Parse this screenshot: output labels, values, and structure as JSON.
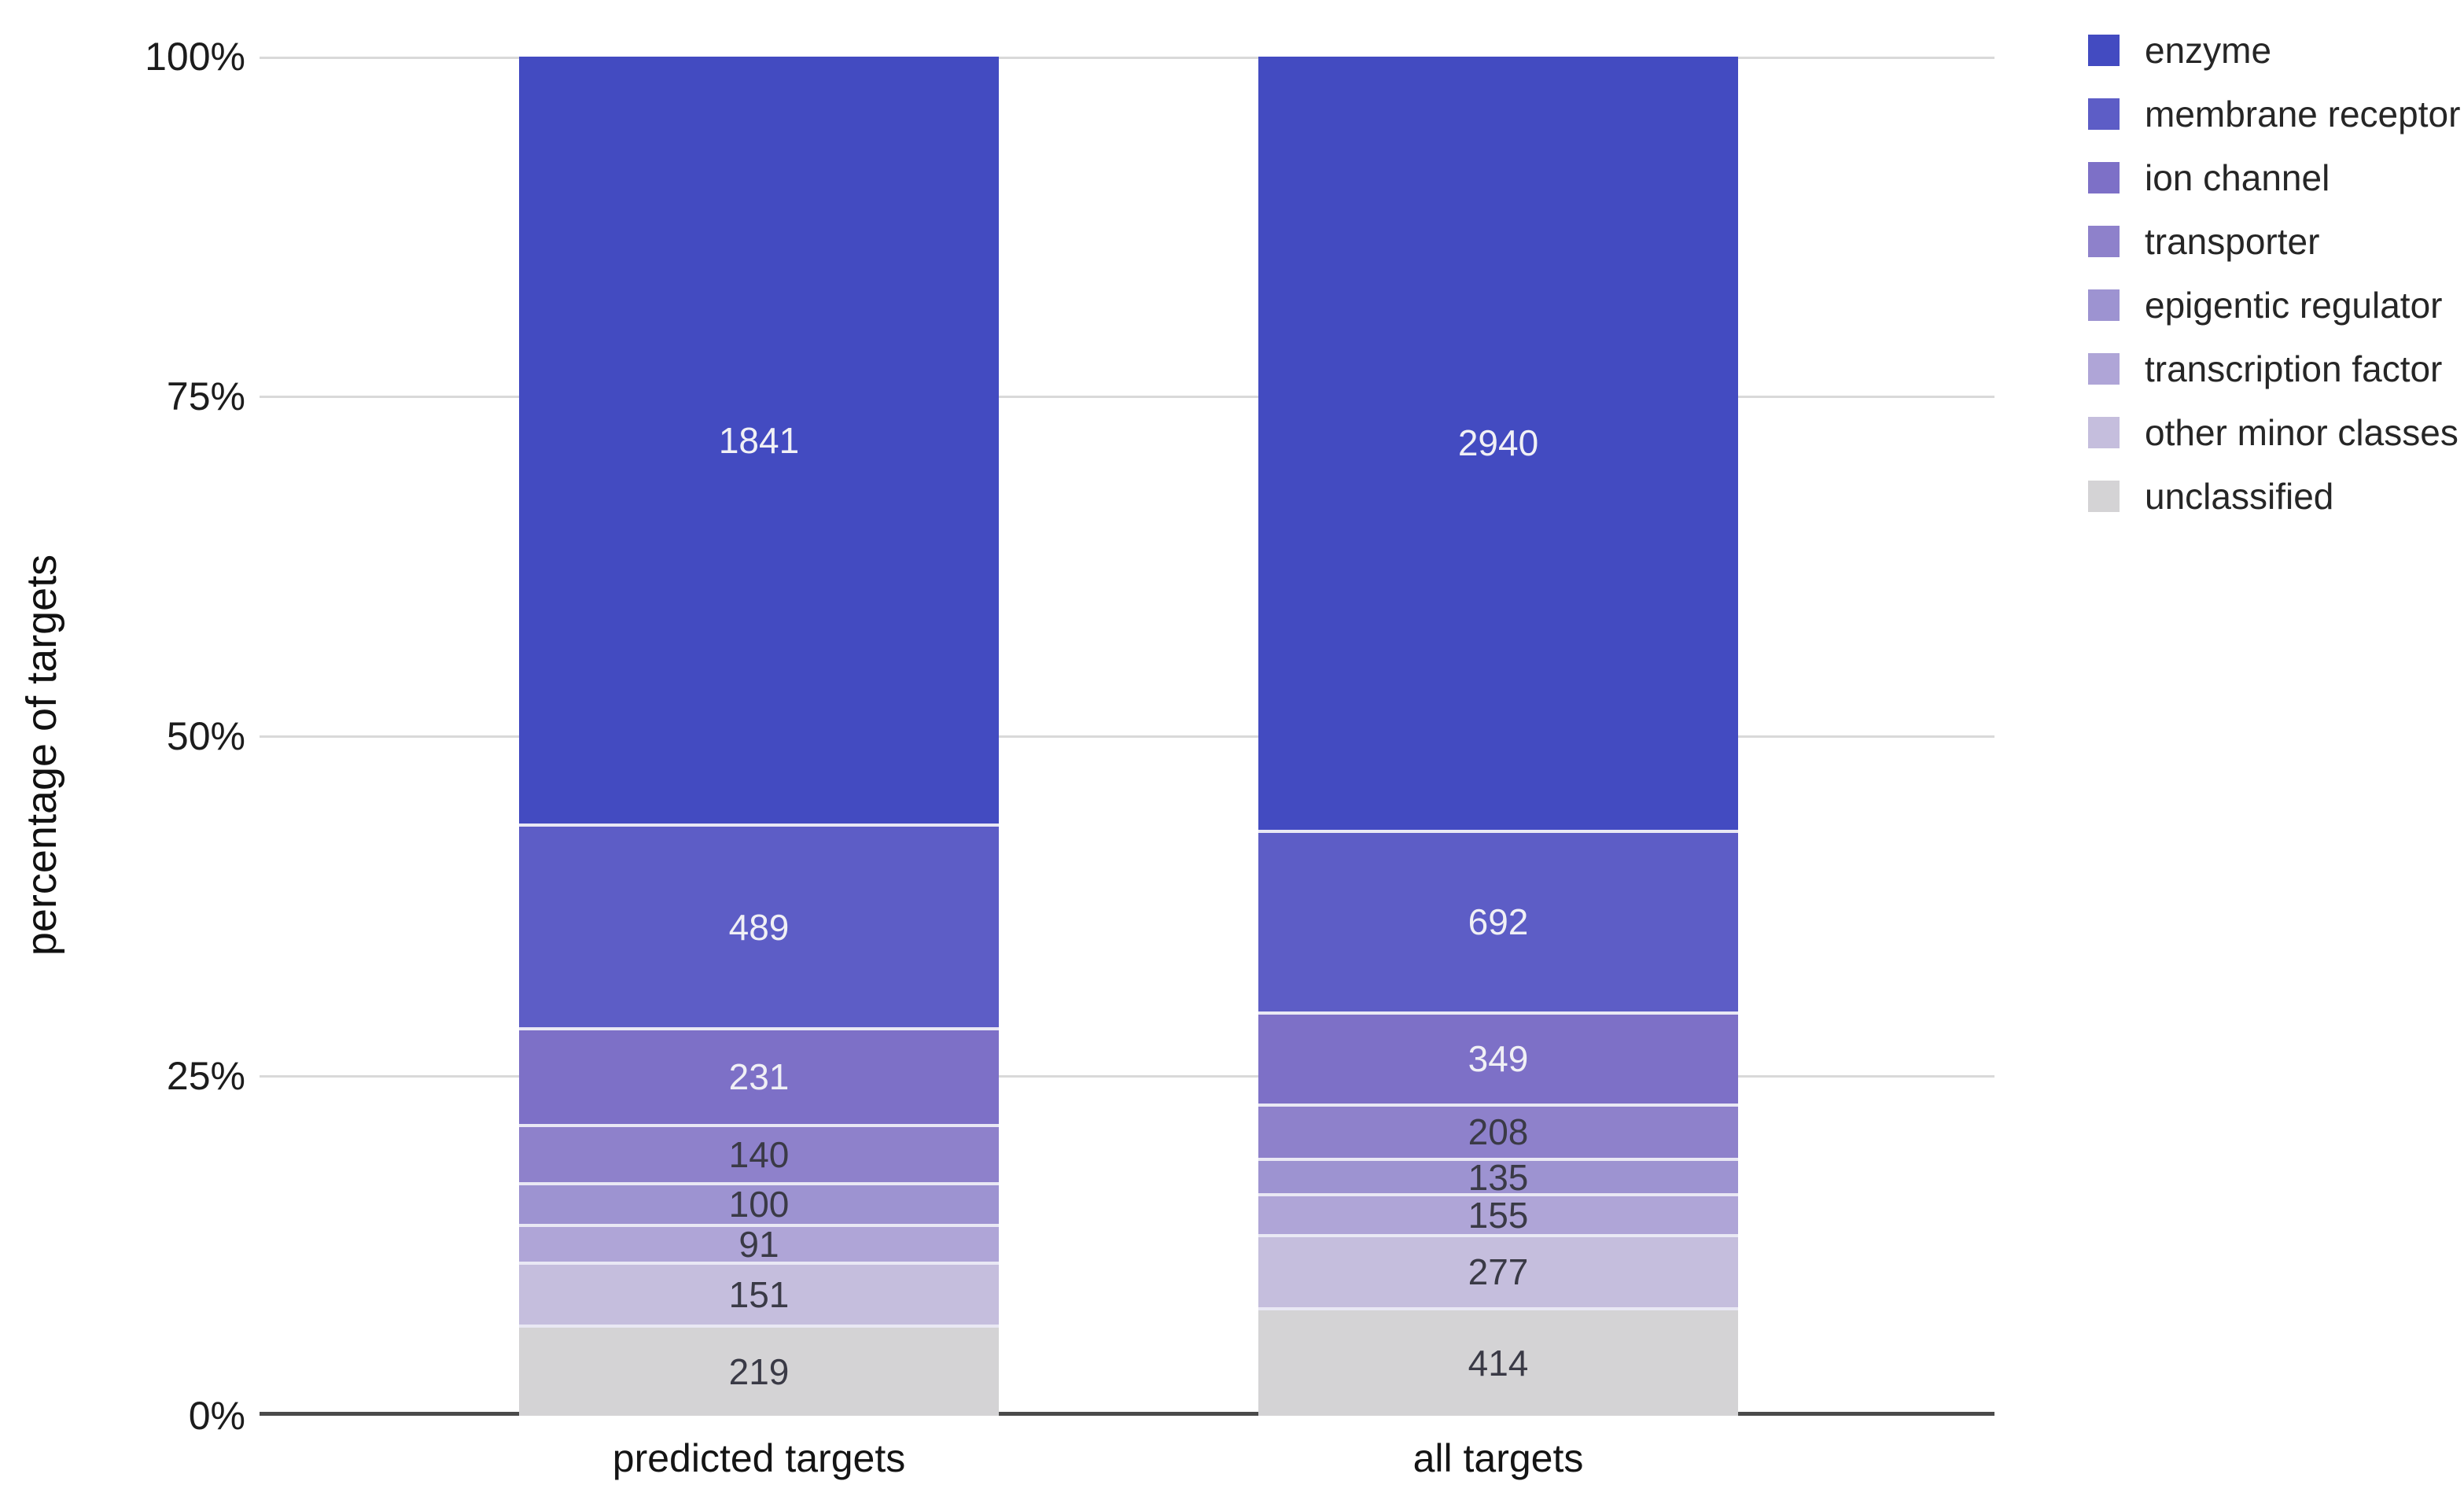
{
  "chart_data": {
    "type": "bar",
    "stacked": true,
    "normalized": "each bar totals 100%",
    "title": "",
    "xlabel": "",
    "x_categories": [
      "predicted targets",
      "all targets"
    ],
    "y_axis": {
      "title": "percentage of targets",
      "range": [
        0,
        100
      ],
      "grid": true,
      "ticks": [
        {
          "label": "100%",
          "value": 100
        },
        {
          "label": "75%",
          "value": 75
        },
        {
          "label": "50%",
          "value": 50
        },
        {
          "label": "25%",
          "value": 25
        },
        {
          "label": "0%",
          "value": 0
        }
      ]
    },
    "legend_position": "top-right",
    "series": [
      {
        "name": "enzyme",
        "color": "#434bc1",
        "label_color": "#f0f0f5",
        "values": [
          1841,
          2940
        ]
      },
      {
        "name": "membrane receptor",
        "color": "#5d5dc6",
        "label_color": "#f0f0f5",
        "values": [
          489,
          692
        ]
      },
      {
        "name": "ion channel",
        "color": "#7d70c7",
        "label_color": "#f0f0f5",
        "values": [
          231,
          349
        ]
      },
      {
        "name": "transporter",
        "color": "#8e81cb",
        "label_color": "#3a3a46",
        "values": [
          140,
          208
        ]
      },
      {
        "name": "epigentic regulator",
        "color": "#9d93d1",
        "label_color": "#3a3a46",
        "values": [
          100,
          135
        ]
      },
      {
        "name": "transcription factor",
        "color": "#afa5d7",
        "label_color": "#3a3a46",
        "values": [
          91,
          155
        ]
      },
      {
        "name": "other minor classes",
        "color": "#c5bedd",
        "label_color": "#3a3a46",
        "values": [
          151,
          277
        ]
      },
      {
        "name": "unclassified",
        "color": "#d4d3d5",
        "label_color": "#3a3a46",
        "values": [
          219,
          414
        ]
      }
    ]
  },
  "style": {
    "background": "#ffffff",
    "gridline_color": "#d9d9d9",
    "axis_line_color": "#4a4a4a",
    "segment_separator_color": "#e9e8f4",
    "tick_label_color": "#1c1c1c",
    "x_label_color": "#141414",
    "legend_text_color": "#262626"
  }
}
